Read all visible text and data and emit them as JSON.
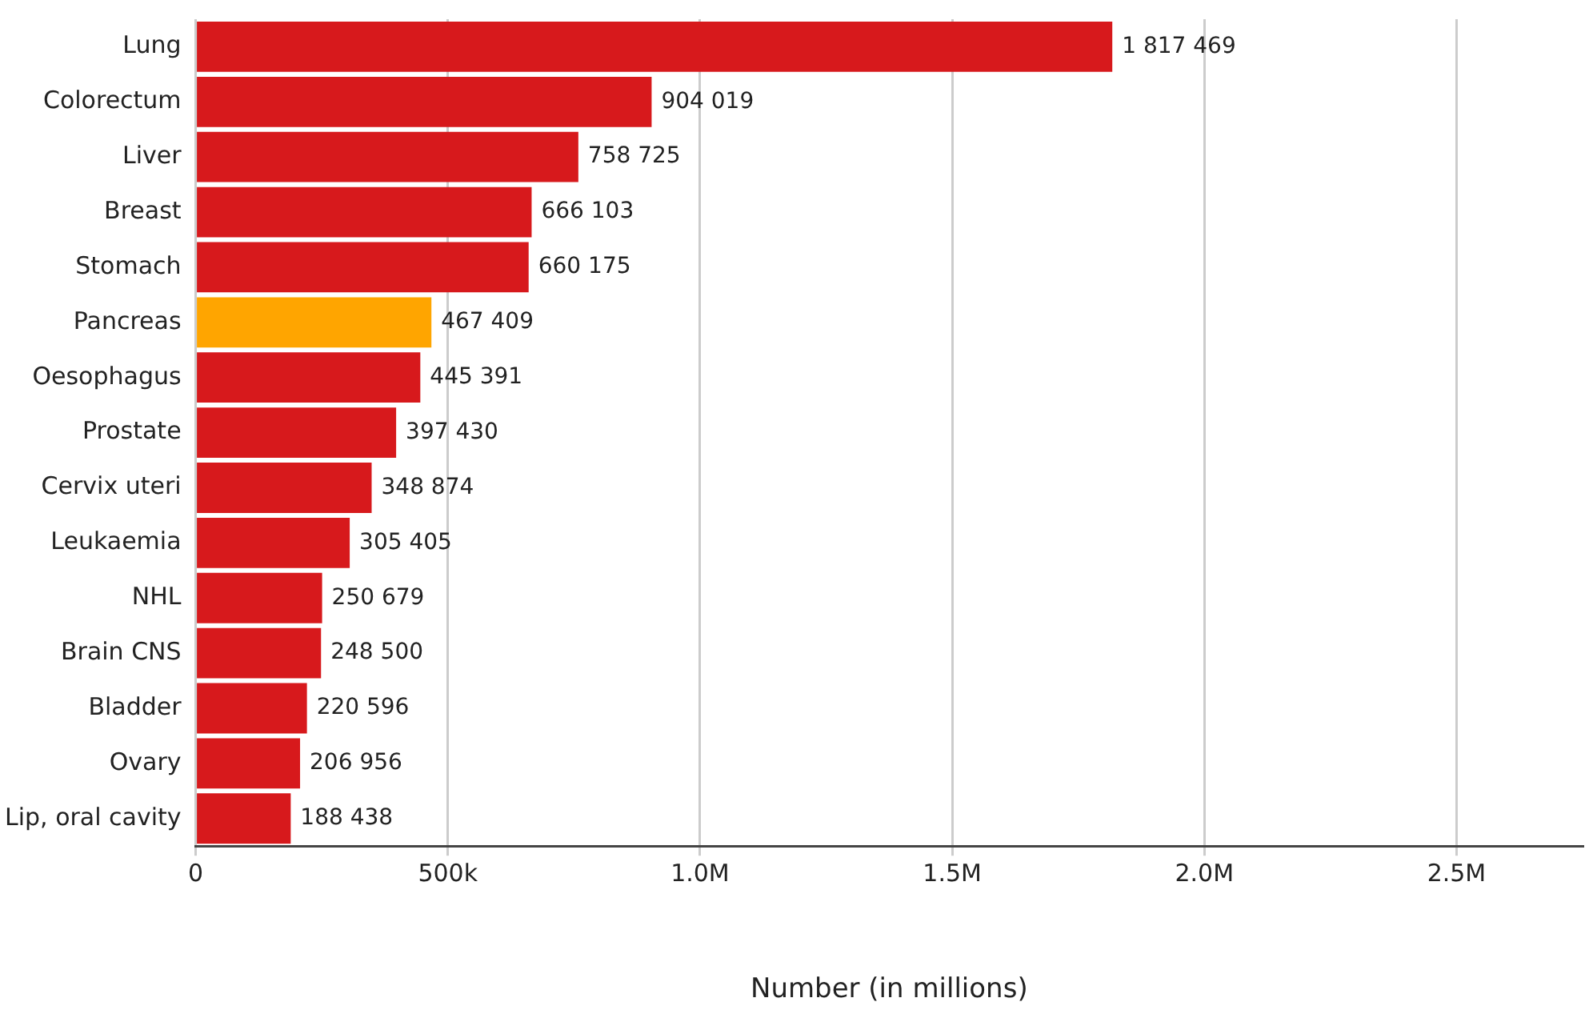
{
  "chart_data": {
    "type": "bar",
    "orientation": "horizontal",
    "xlabel": "Number (in millions)",
    "categories": [
      "Lung",
      "Colorectum",
      "Liver",
      "Breast",
      "Stomach",
      "Pancreas",
      "Oesophagus",
      "Prostate",
      "Cervix uteri",
      "Leukaemia",
      "NHL",
      "Brain CNS",
      "Bladder",
      "Ovary",
      "Lip, oral cavity"
    ],
    "values": [
      1817469,
      904019,
      758725,
      666103,
      660175,
      467409,
      445391,
      397430,
      348874,
      305405,
      250679,
      248500,
      220596,
      206956,
      188438
    ],
    "value_labels": [
      "1 817 469",
      "904 019",
      "758 725",
      "666 103",
      "660 175",
      "467 409",
      "445 391",
      "397 430",
      "348 874",
      "305 405",
      "250 679",
      "248 500",
      "220 596",
      "206 956",
      "188 438"
    ],
    "colors": [
      "#d7191c",
      "#d7191c",
      "#d7191c",
      "#d7191c",
      "#d7191c",
      "#ffa500",
      "#d7191c",
      "#d7191c",
      "#d7191c",
      "#d7191c",
      "#d7191c",
      "#d7191c",
      "#d7191c",
      "#d7191c",
      "#d7191c"
    ],
    "xlim": [
      0,
      2750000
    ],
    "xticks": [
      0,
      {
        "value": 500000,
        "label": "500k"
      },
      {
        "value": 1000000,
        "label": "1.0M"
      },
      {
        "value": 1500000,
        "label": "1.5M"
      },
      {
        "value": 2000000,
        "label": "2.0M"
      },
      {
        "value": 2500000,
        "label": "2.5M"
      }
    ],
    "grid": "x",
    "legend": false
  }
}
